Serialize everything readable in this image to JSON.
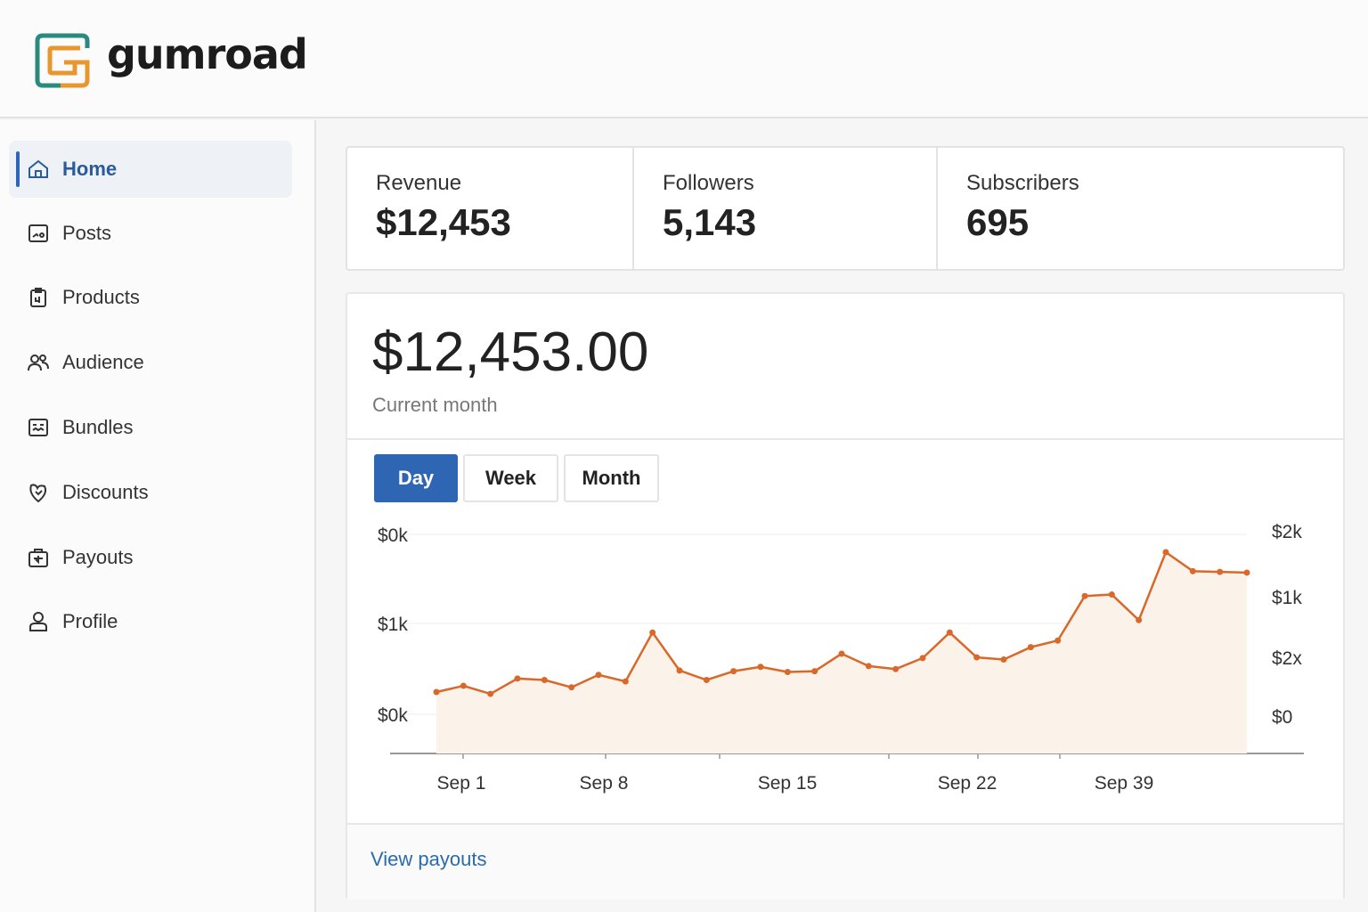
{
  "brand": {
    "name": "gumroad",
    "colors": {
      "orange": "#e8962e",
      "teal": "#2b8a7e"
    }
  },
  "sidebar": {
    "items": [
      {
        "label": "Home",
        "icon": "home-icon",
        "active": true
      },
      {
        "label": "Posts",
        "icon": "posts-icon"
      },
      {
        "label": "Products",
        "icon": "products-icon"
      },
      {
        "label": "Audience",
        "icon": "audience-icon"
      },
      {
        "label": "Bundles",
        "icon": "bundles-icon"
      },
      {
        "label": "Discounts",
        "icon": "discounts-icon"
      },
      {
        "label": "Payouts",
        "icon": "payouts-icon"
      },
      {
        "label": "Profile",
        "icon": "profile-icon"
      }
    ],
    "active_color": "#2d67b3"
  },
  "stats": [
    {
      "label": "Revenue",
      "value": "$12,453"
    },
    {
      "label": "Followers",
      "value": "5,143"
    },
    {
      "label": "Subscribers",
      "value": "695"
    }
  ],
  "revenue_panel": {
    "amount": "$12,453.00",
    "period": "Current month",
    "tabs": [
      {
        "label": "Day",
        "active": true
      },
      {
        "label": "Week"
      },
      {
        "label": "Month"
      }
    ],
    "link": "View payouts",
    "accent": "#2f66b4"
  },
  "chart_data": {
    "type": "area",
    "title": "",
    "xlabel": "",
    "ylabel": "",
    "grid": true,
    "line_color": "#d8692a",
    "fill_color": "#fbf2ea",
    "x_ticks": [
      "Sep 1",
      "Sep 8",
      "Sep 15",
      "Sep 22",
      "Sep 39"
    ],
    "y_ticks_left": [
      "$0k",
      "$1k",
      "$0k"
    ],
    "y_ticks_right": [
      "$2k",
      "$1k",
      "$2x",
      "$0"
    ],
    "ylim": [
      0,
      2000
    ],
    "series": [
      {
        "values": [
          85,
          170,
          60,
          270,
          250,
          150,
          320,
          230,
          900,
          380,
          250,
          370,
          430,
          360,
          370,
          610,
          440,
          400,
          550,
          900,
          560,
          530,
          700,
          790,
          1400,
          1420,
          1070,
          2000,
          1740,
          1730,
          1720
        ]
      }
    ]
  }
}
